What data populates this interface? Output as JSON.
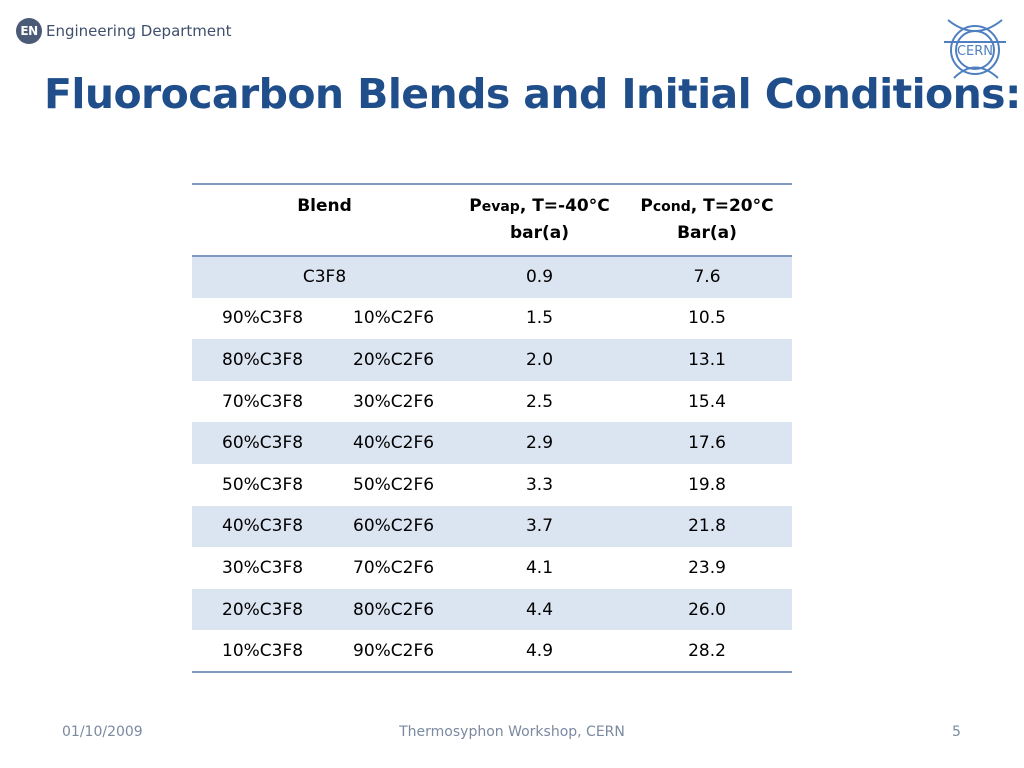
{
  "header": {
    "badge": "EN",
    "department": "Engineering Department",
    "cern_logo_text": "CERN"
  },
  "title": "Fluorocarbon Blends and Initial Conditions:",
  "table": {
    "headers": {
      "blend": "Blend",
      "pevap_symbol": "P",
      "pevap_sub": "evap",
      "pevap_cond": ", T=-40°C",
      "pevap_unit": "bar(a)",
      "pcond_symbol": "P",
      "pcond_sub": "cond",
      "pcond_cond": ", T=20°C",
      "pcond_unit": "Bar(a)"
    },
    "rows": [
      {
        "blend": "C3F8",
        "c3f8": "",
        "c2f6": "",
        "pevap": "0.9",
        "pcond": "7.6"
      },
      {
        "blend": "",
        "c3f8": "90%C3F8",
        "c2f6": "10%C2F6",
        "pevap": "1.5",
        "pcond": "10.5"
      },
      {
        "blend": "",
        "c3f8": "80%C3F8",
        "c2f6": "20%C2F6",
        "pevap": "2.0",
        "pcond": "13.1"
      },
      {
        "blend": "",
        "c3f8": "70%C3F8",
        "c2f6": "30%C2F6",
        "pevap": "2.5",
        "pcond": "15.4"
      },
      {
        "blend": "",
        "c3f8": "60%C3F8",
        "c2f6": "40%C2F6",
        "pevap": "2.9",
        "pcond": "17.6"
      },
      {
        "blend": "",
        "c3f8": "50%C3F8",
        "c2f6": "50%C2F6",
        "pevap": "3.3",
        "pcond": "19.8"
      },
      {
        "blend": "",
        "c3f8": "40%C3F8",
        "c2f6": "60%C2F6",
        "pevap": "3.7",
        "pcond": "21.8"
      },
      {
        "blend": "",
        "c3f8": "30%C3F8",
        "c2f6": "70%C2F6",
        "pevap": "4.1",
        "pcond": "23.9"
      },
      {
        "blend": "",
        "c3f8": "20%C3F8",
        "c2f6": "80%C2F6",
        "pevap": "4.4",
        "pcond": "26.0"
      },
      {
        "blend": "",
        "c3f8": "10%C3F8",
        "c2f6": "90%C2F6",
        "pevap": "4.9",
        "pcond": "28.2"
      }
    ]
  },
  "footer": {
    "date": "01/10/2009",
    "event": "Thermosyphon Workshop, CERN",
    "page": "5"
  },
  "colors": {
    "title": "#1f4e8a",
    "table_rule": "#7f9bc4",
    "row_shade": "#dbe4f1",
    "footer_text": "#7a8aa0"
  }
}
